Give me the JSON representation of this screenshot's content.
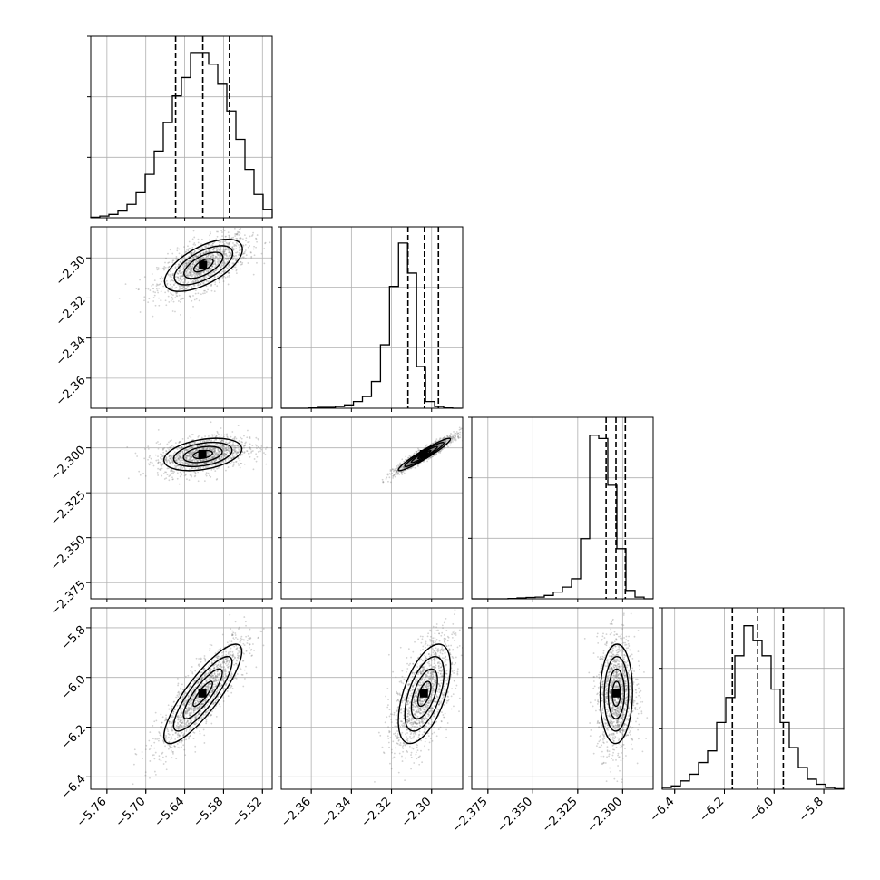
{
  "chart_data": {
    "type": "corner",
    "grid": true,
    "parameters": [
      {
        "range": [
          -5.785,
          -5.505
        ],
        "ticks": [
          -5.76,
          -5.7,
          -5.64,
          -5.58,
          -5.52
        ],
        "tick_labels": [
          "−5.76",
          "−5.70",
          "−5.64",
          "−5.58",
          "−5.52"
        ],
        "quantiles": [
          -5.654,
          -5.612,
          -5.571
        ],
        "histogram": {
          "edges_start": -5.785,
          "bin_width": 0.014,
          "counts": [
            0.003,
            0.01,
            0.02,
            0.04,
            0.08,
            0.15,
            0.26,
            0.4,
            0.57,
            0.73,
            0.84,
            0.99,
            0.99,
            0.92,
            0.8,
            0.64,
            0.47,
            0.29,
            0.14,
            0.05
          ]
        }
      },
      {
        "range": [
          -2.375,
          -2.2845
        ],
        "ticks": [
          -2.36,
          -2.34,
          -2.32,
          -2.3
        ],
        "tick_labels": [
          "−2.36",
          "−2.34",
          "−2.32",
          "−2.30"
        ],
        "quantiles": [
          -2.3118,
          -2.3036,
          -2.2966
        ],
        "histogram": {
          "edges_start": -2.375,
          "bin_width": 0.0045,
          "counts": [
            0.0,
            0.0,
            0.0,
            0.002,
            0.005,
            0.005,
            0.01,
            0.02,
            0.04,
            0.07,
            0.16,
            0.38,
            0.73,
            0.99,
            0.81,
            0.25,
            0.04,
            0.01,
            0.002,
            0.0
          ]
        }
      },
      {
        "range": [
          -2.384,
          -2.283
        ],
        "ticks": [
          -2.375,
          -2.35,
          -2.325,
          -2.3
        ],
        "tick_labels": [
          "−2.375",
          "−2.350",
          "−2.325",
          "−2.300"
        ],
        "quantiles": [
          -2.3092,
          -2.3037,
          -2.2985
        ],
        "histogram": {
          "edges_start": -2.384,
          "bin_width": 0.00505,
          "counts": [
            0.0,
            0.0,
            0.0,
            0.0,
            0.002,
            0.005,
            0.008,
            0.01,
            0.02,
            0.04,
            0.07,
            0.12,
            0.36,
            0.98,
            0.96,
            0.68,
            0.3,
            0.05,
            0.01,
            0.0
          ]
        }
      },
      {
        "range": [
          -6.45,
          -5.72
        ],
        "ticks": [
          -6.4,
          -6.2,
          -6.0,
          -5.8
        ],
        "tick_labels": [
          "−6.4",
          "−6.2",
          "−6.0",
          "−5.8"
        ],
        "quantiles": [
          -6.168,
          -6.066,
          -5.963
        ],
        "histogram": {
          "edges_start": -6.45,
          "bin_width": 0.0365,
          "counts": [
            0.01,
            0.02,
            0.05,
            0.09,
            0.16,
            0.23,
            0.4,
            0.55,
            0.8,
            0.98,
            0.89,
            0.8,
            0.6,
            0.4,
            0.25,
            0.13,
            0.06,
            0.03,
            0.01,
            0.003
          ]
        }
      }
    ],
    "pairs": [
      {
        "row": 1,
        "col": 0,
        "yticks": [
          -2.3,
          -2.32,
          -2.34,
          -2.36
        ],
        "ytick_labels": [
          "−2.30",
          "−2.32",
          "−2.34",
          "−2.36"
        ],
        "center": [
          -5.611,
          -2.3037
        ],
        "sd": [
          0.03,
          0.0065
        ],
        "corr": 0.62
      },
      {
        "row": 2,
        "col": 0,
        "yticks": [
          -2.3,
          -2.325,
          -2.35,
          -2.375
        ],
        "ytick_labels": [
          "−2.300",
          "−2.325",
          "−2.350",
          "−2.375"
        ],
        "center": [
          -5.612,
          -2.3037
        ],
        "sd": [
          0.03,
          0.0045
        ],
        "corr": 0.35
      },
      {
        "row": 2,
        "col": 1,
        "center": [
          -2.3036,
          -2.3037
        ],
        "sd": [
          0.0065,
          0.0045
        ],
        "corr": 0.95
      },
      {
        "row": 3,
        "col": 0,
        "yticks": [
          -5.8,
          -6.0,
          -6.2,
          -6.4
        ],
        "ytick_labels": [
          "−5.8",
          "−6.0",
          "−6.2",
          "−6.4"
        ],
        "center": [
          -5.612,
          -6.066
        ],
        "sd": [
          0.03,
          0.1
        ],
        "corr": 0.85
      },
      {
        "row": 3,
        "col": 1,
        "center": [
          -2.3036,
          -6.066
        ],
        "sd": [
          0.0065,
          0.1
        ],
        "corr": 0.55
      },
      {
        "row": 3,
        "col": 2,
        "center": [
          -2.3035,
          -6.066
        ],
        "sd": [
          0.0045,
          0.1
        ],
        "corr": 0.05
      }
    ],
    "contour_levels_sigma": [
      0.5,
      1.0,
      1.5,
      2.0
    ]
  },
  "colors": {
    "line": "#000000",
    "grid": "#b0b0b0",
    "points": "#7f7f7f"
  }
}
